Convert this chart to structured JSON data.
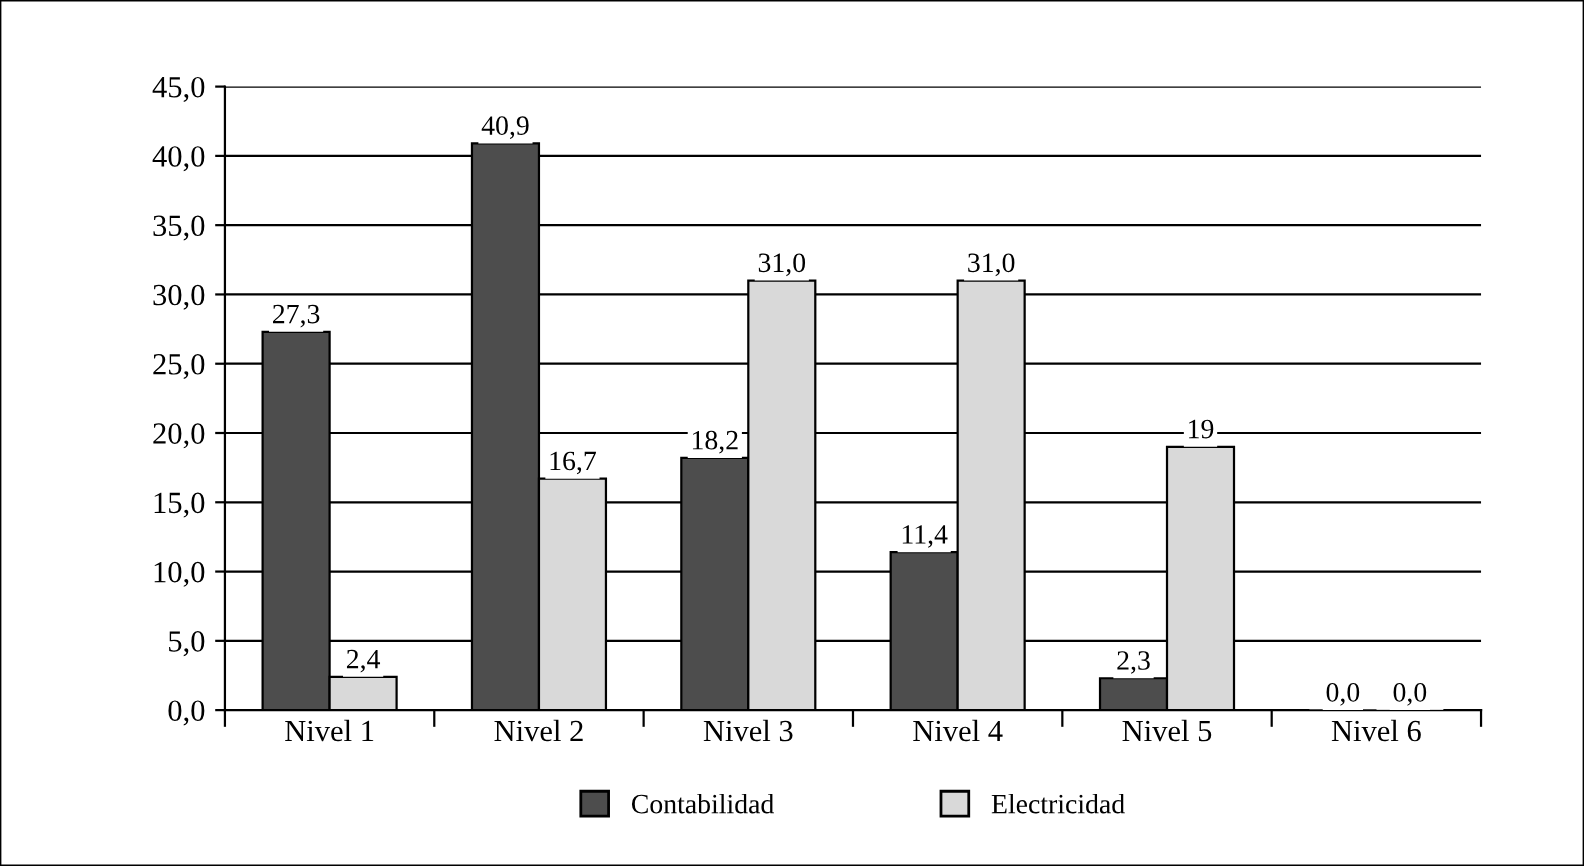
{
  "chart_data": {
    "type": "bar",
    "categories": [
      "Nivel 1",
      "Nivel 2",
      "Nivel 3",
      "Nivel 4",
      "Nivel 5",
      "Nivel 6"
    ],
    "series": [
      {
        "name": "Contabilidad",
        "color": "#4d4d4d",
        "values": [
          27.3,
          40.9,
          18.2,
          11.4,
          2.3,
          0.0
        ],
        "value_labels": [
          "27,3",
          "40,9",
          "18,2",
          "11,4",
          "2,3",
          "0,0"
        ]
      },
      {
        "name": "Electricidad",
        "color": "#d9d9d9",
        "values": [
          2.4,
          16.7,
          31.0,
          31.0,
          19,
          0.0
        ],
        "value_labels": [
          "2,4",
          "16,7",
          "31,0",
          "31,0",
          "19",
          "0,0"
        ]
      }
    ],
    "ylim": [
      0,
      45
    ],
    "yticks": [
      {
        "value": 0,
        "label": "0,0"
      },
      {
        "value": 5,
        "label": "5,0"
      },
      {
        "value": 10,
        "label": "10,0"
      },
      {
        "value": 15,
        "label": "15,0"
      },
      {
        "value": 20,
        "label": "20,0"
      },
      {
        "value": 25,
        "label": "25,0"
      },
      {
        "value": 30,
        "label": "30,0"
      },
      {
        "value": 35,
        "label": "35,0"
      },
      {
        "value": 40,
        "label": "40,0"
      },
      {
        "value": 45,
        "label": "45,0"
      }
    ],
    "grid": "y",
    "legend": "bottom"
  }
}
